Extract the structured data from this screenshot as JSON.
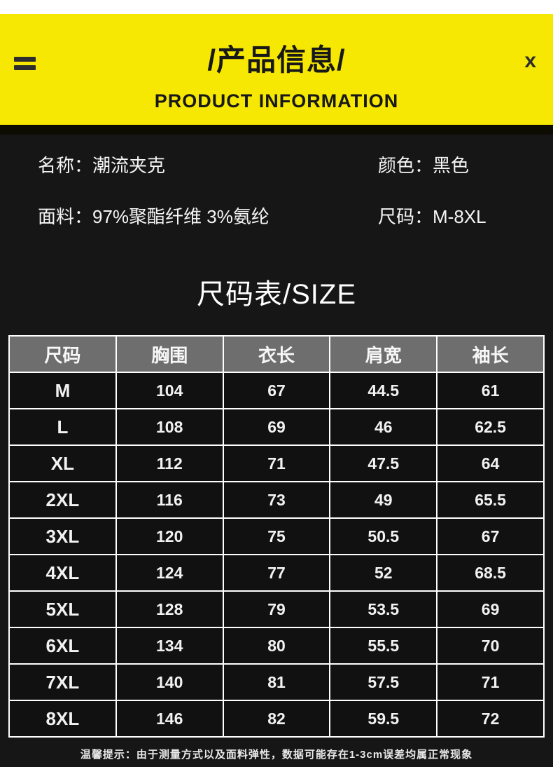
{
  "header": {
    "title": "/产品信息/",
    "subtitle": "PRODUCT INFORMATION",
    "close_label": "x"
  },
  "product": {
    "fields": [
      {
        "label": "名称：",
        "value": "潮流夹克"
      },
      {
        "label": "颜色：",
        "value": "黑色"
      },
      {
        "label": "面料：",
        "value": "97%聚酯纤维 3%氨纶"
      },
      {
        "label": "尺码：",
        "value": "M-8XL"
      }
    ]
  },
  "size_section": {
    "title": "尺码表/SIZE",
    "note": "温馨提示：由于测量方式以及面料弹性，数据可能存在1-3cm误差均属正常现象"
  },
  "size_table": {
    "columns": [
      "尺码",
      "胸围",
      "衣长",
      "肩宽",
      "袖长"
    ],
    "rows": [
      [
        "M",
        "104",
        "67",
        "44.5",
        "61"
      ],
      [
        "L",
        "108",
        "69",
        "46",
        "62.5"
      ],
      [
        "XL",
        "112",
        "71",
        "47.5",
        "64"
      ],
      [
        "2XL",
        "116",
        "73",
        "49",
        "65.5"
      ],
      [
        "3XL",
        "120",
        "75",
        "50.5",
        "67"
      ],
      [
        "4XL",
        "124",
        "77",
        "52",
        "68.5"
      ],
      [
        "5XL",
        "128",
        "79",
        "53.5",
        "69"
      ],
      [
        "6XL",
        "134",
        "80",
        "55.5",
        "70"
      ],
      [
        "7XL",
        "140",
        "81",
        "57.5",
        "71"
      ],
      [
        "8XL",
        "146",
        "82",
        "59.5",
        "72"
      ]
    ]
  },
  "colors": {
    "accent_yellow": "#f6e802",
    "page_background": "#161616",
    "table_header_gray": "#6e6e6e",
    "text_white": "#ffffff",
    "icon_dark": "#2d2d2d"
  }
}
